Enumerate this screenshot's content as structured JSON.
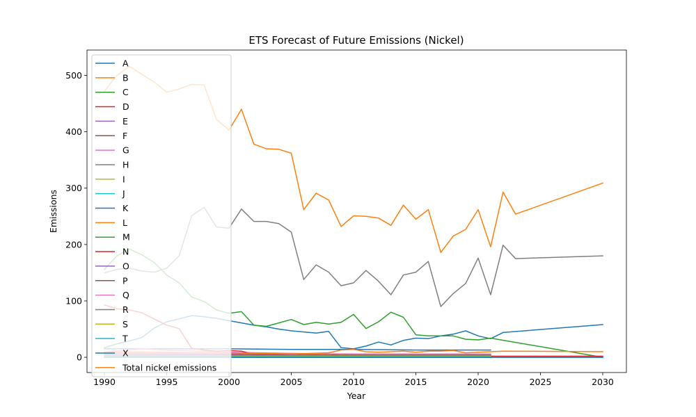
{
  "chart_data": {
    "type": "line",
    "title": "ETS Forecast of Future Emissions (Nickel)",
    "xlabel": "Year",
    "ylabel": "Emissions",
    "xlim": [
      1988.6,
      2031.9
    ],
    "ylim": [
      -27,
      545
    ],
    "xticks": [
      1990,
      1995,
      2000,
      2005,
      2010,
      2015,
      2020,
      2025,
      2030
    ],
    "yticks": [
      0,
      100,
      200,
      300,
      400,
      500
    ],
    "grid": false,
    "legend_position": "upper-left",
    "series": [
      {
        "name": "A",
        "color": "#1f77b4",
        "points": [
          [
            1990,
            15
          ],
          [
            1992,
            15
          ],
          [
            1995,
            15
          ],
          [
            2000,
            15
          ],
          [
            2005,
            14
          ],
          [
            2010,
            14
          ],
          [
            2015,
            13
          ],
          [
            2020,
            13
          ],
          [
            2021,
            13
          ]
        ]
      },
      {
        "name": "B",
        "color": "#ff7f0e",
        "points": [
          [
            1990,
            5
          ],
          [
            2000,
            5
          ],
          [
            2010,
            4
          ],
          [
            2020,
            4
          ],
          [
            2021,
            4
          ]
        ]
      },
      {
        "name": "C",
        "color": "#2ca02c",
        "points": [
          [
            1990,
            3
          ],
          [
            2000,
            3
          ],
          [
            2010,
            3
          ],
          [
            2020,
            3
          ],
          [
            2021,
            3
          ]
        ]
      },
      {
        "name": "D",
        "color": "#d62728",
        "points": [
          [
            1990,
            2
          ],
          [
            2000,
            2
          ],
          [
            2010,
            2
          ],
          [
            2020,
            2
          ],
          [
            2021,
            2
          ]
        ]
      },
      {
        "name": "E",
        "color": "#9467bd",
        "points": [
          [
            1990,
            1
          ],
          [
            2000,
            1
          ],
          [
            2010,
            1
          ],
          [
            2020,
            1
          ],
          [
            2021,
            1
          ]
        ]
      },
      {
        "name": "F",
        "color": "#8c564b",
        "points": [
          [
            1990,
            3
          ],
          [
            2000,
            3
          ],
          [
            2010,
            3
          ],
          [
            2021,
            3
          ]
        ]
      },
      {
        "name": "G",
        "color": "#e377c2",
        "points": [
          [
            1990,
            10
          ],
          [
            1992,
            13
          ],
          [
            1993,
            15
          ],
          [
            1995,
            13
          ],
          [
            2000,
            9
          ],
          [
            2005,
            7
          ],
          [
            2010,
            5
          ],
          [
            2015,
            4
          ],
          [
            2021,
            4
          ]
        ]
      },
      {
        "name": "H",
        "color": "#7f7f7f",
        "points": [
          [
            1990,
            2
          ],
          [
            2000,
            2
          ],
          [
            2010,
            2
          ],
          [
            2021,
            2
          ]
        ]
      },
      {
        "name": "I",
        "color": "#bcbd22",
        "points": [
          [
            1990,
            1
          ],
          [
            2000,
            1
          ],
          [
            2010,
            1
          ],
          [
            2021,
            1
          ]
        ]
      },
      {
        "name": "J",
        "color": "#17becf",
        "points": [
          [
            1990,
            0
          ],
          [
            2000,
            0
          ],
          [
            2010,
            0
          ],
          [
            2021,
            0
          ],
          [
            2022,
            0
          ],
          [
            2030,
            0
          ]
        ]
      },
      {
        "name": "K",
        "color": "#1f77b4",
        "points": [
          [
            1990,
            17
          ],
          [
            1991,
            24
          ],
          [
            1992,
            29
          ],
          [
            1993,
            35
          ],
          [
            1994,
            52
          ],
          [
            1995,
            63
          ],
          [
            1996,
            68
          ],
          [
            1997,
            74
          ],
          [
            1998,
            72
          ],
          [
            1999,
            69
          ],
          [
            2000,
            65
          ],
          [
            2001,
            61
          ],
          [
            2002,
            57
          ],
          [
            2003,
            54
          ],
          [
            2004,
            50
          ],
          [
            2005,
            47
          ],
          [
            2006,
            45
          ],
          [
            2007,
            43
          ],
          [
            2008,
            46
          ],
          [
            2009,
            17
          ],
          [
            2010,
            15
          ],
          [
            2011,
            20
          ],
          [
            2012,
            27
          ],
          [
            2013,
            22
          ],
          [
            2014,
            30
          ],
          [
            2015,
            34
          ],
          [
            2016,
            33
          ],
          [
            2017,
            38
          ],
          [
            2018,
            41
          ],
          [
            2019,
            47
          ],
          [
            2020,
            38
          ],
          [
            2021,
            33
          ],
          [
            2022,
            44
          ],
          [
            2030,
            58
          ]
        ]
      },
      {
        "name": "L",
        "color": "#ff7f0e",
        "points": [
          [
            1990,
            472
          ],
          [
            1991,
            500
          ],
          [
            1992,
            516
          ],
          [
            1993,
            502
          ],
          [
            1994,
            488
          ],
          [
            1995,
            470
          ],
          [
            1996,
            476
          ],
          [
            1997,
            484
          ],
          [
            1998,
            483
          ],
          [
            1999,
            422
          ],
          [
            2000,
            403
          ],
          [
            2001,
            440
          ],
          [
            2002,
            378
          ],
          [
            2003,
            370
          ],
          [
            2004,
            369
          ],
          [
            2005,
            362
          ],
          [
            2006,
            262
          ],
          [
            2007,
            291
          ],
          [
            2008,
            279
          ],
          [
            2009,
            232
          ],
          [
            2010,
            251
          ],
          [
            2011,
            250
          ],
          [
            2012,
            247
          ],
          [
            2013,
            234
          ],
          [
            2014,
            270
          ],
          [
            2015,
            245
          ],
          [
            2016,
            262
          ],
          [
            2017,
            186
          ],
          [
            2018,
            215
          ],
          [
            2019,
            227
          ],
          [
            2020,
            262
          ],
          [
            2021,
            196
          ],
          [
            2022,
            293
          ],
          [
            2023,
            254
          ],
          [
            2030,
            309
          ]
        ]
      },
      {
        "name": "M",
        "color": "#2ca02c",
        "points": [
          [
            1990,
            156
          ],
          [
            1991,
            180
          ],
          [
            1992,
            192
          ],
          [
            1993,
            182
          ],
          [
            1994,
            168
          ],
          [
            1995,
            146
          ],
          [
            1996,
            132
          ],
          [
            1997,
            107
          ],
          [
            1998,
            99
          ],
          [
            1999,
            84
          ],
          [
            2000,
            78
          ],
          [
            2001,
            81
          ],
          [
            2002,
            57
          ],
          [
            2003,
            55
          ],
          [
            2004,
            61
          ],
          [
            2005,
            67
          ],
          [
            2006,
            58
          ],
          [
            2007,
            62
          ],
          [
            2008,
            59
          ],
          [
            2009,
            62
          ],
          [
            2010,
            76
          ],
          [
            2011,
            51
          ],
          [
            2012,
            63
          ],
          [
            2013,
            80
          ],
          [
            2014,
            71
          ],
          [
            2015,
            40
          ],
          [
            2016,
            38
          ],
          [
            2017,
            38
          ],
          [
            2018,
            38
          ],
          [
            2019,
            32
          ],
          [
            2020,
            31
          ],
          [
            2021,
            34
          ],
          [
            2030,
            0
          ]
        ]
      },
      {
        "name": "N",
        "color": "#d62728",
        "points": [
          [
            1990,
            93
          ],
          [
            1991,
            86
          ],
          [
            1992,
            84
          ],
          [
            1993,
            79
          ],
          [
            1994,
            68
          ],
          [
            1995,
            57
          ],
          [
            1996,
            51
          ],
          [
            1997,
            16
          ],
          [
            1998,
            13
          ],
          [
            1999,
            11
          ],
          [
            2000,
            12
          ],
          [
            2001,
            11
          ],
          [
            2002,
            5
          ],
          [
            2003,
            4
          ],
          [
            2004,
            5
          ],
          [
            2005,
            6
          ],
          [
            2006,
            6
          ],
          [
            2007,
            5
          ],
          [
            2008,
            6
          ],
          [
            2009,
            2
          ],
          [
            2010,
            2
          ],
          [
            2015,
            2
          ],
          [
            2021,
            2
          ],
          [
            2030,
            2
          ]
        ]
      },
      {
        "name": "O",
        "color": "#9467bd",
        "points": [
          [
            1990,
            4
          ],
          [
            2000,
            4
          ],
          [
            2010,
            3
          ],
          [
            2021,
            3
          ]
        ]
      },
      {
        "name": "P",
        "color": "#8c564b",
        "points": [
          [
            1990,
            7
          ],
          [
            2000,
            6
          ],
          [
            2010,
            5
          ],
          [
            2021,
            5
          ]
        ]
      },
      {
        "name": "Q",
        "color": "#e377c2",
        "points": [
          [
            1990,
            8
          ],
          [
            2000,
            7
          ],
          [
            2010,
            6
          ],
          [
            2021,
            6
          ]
        ]
      },
      {
        "name": "R",
        "color": "#7f7f7f",
        "points": [
          [
            1990,
            150
          ],
          [
            1991,
            156
          ],
          [
            1992,
            158
          ],
          [
            1993,
            153
          ],
          [
            1994,
            151
          ],
          [
            1995,
            158
          ],
          [
            1996,
            180
          ],
          [
            1997,
            251
          ],
          [
            1998,
            266
          ],
          [
            1999,
            231
          ],
          [
            2000,
            229
          ],
          [
            2001,
            263
          ],
          [
            2002,
            241
          ],
          [
            2003,
            241
          ],
          [
            2004,
            237
          ],
          [
            2005,
            222
          ],
          [
            2006,
            138
          ],
          [
            2007,
            164
          ],
          [
            2008,
            151
          ],
          [
            2009,
            127
          ],
          [
            2010,
            132
          ],
          [
            2011,
            154
          ],
          [
            2012,
            135
          ],
          [
            2013,
            111
          ],
          [
            2014,
            146
          ],
          [
            2015,
            151
          ],
          [
            2016,
            170
          ],
          [
            2017,
            90
          ],
          [
            2018,
            113
          ],
          [
            2019,
            131
          ],
          [
            2020,
            176
          ],
          [
            2021,
            111
          ],
          [
            2022,
            199
          ],
          [
            2023,
            175
          ],
          [
            2030,
            180
          ]
        ]
      },
      {
        "name": "S",
        "color": "#bcbd22",
        "points": [
          [
            1990,
            2
          ],
          [
            2000,
            2
          ],
          [
            2010,
            2
          ],
          [
            2021,
            2
          ]
        ]
      },
      {
        "name": "T",
        "color": "#17becf",
        "points": [
          [
            1990,
            1
          ],
          [
            2000,
            1
          ],
          [
            2010,
            1
          ],
          [
            2021,
            1
          ]
        ]
      },
      {
        "name": "X",
        "color": "#1f77b4",
        "points": [
          [
            1990,
            0
          ],
          [
            2000,
            0
          ],
          [
            2010,
            0
          ],
          [
            2021,
            0
          ],
          [
            2030,
            0
          ]
        ]
      },
      {
        "name": "Total nickel emissions",
        "color": "#ff7f0e",
        "points": [
          [
            1990,
            10
          ],
          [
            1995,
            9
          ],
          [
            2000,
            8
          ],
          [
            2005,
            6
          ],
          [
            2008,
            8
          ],
          [
            2009,
            13
          ],
          [
            2010,
            14
          ],
          [
            2011,
            10
          ],
          [
            2012,
            9
          ],
          [
            2013,
            10
          ],
          [
            2014,
            11
          ],
          [
            2015,
            9
          ],
          [
            2016,
            11
          ],
          [
            2017,
            11
          ],
          [
            2018,
            12
          ],
          [
            2019,
            8
          ],
          [
            2020,
            9
          ],
          [
            2021,
            10
          ],
          [
            2022,
            11
          ],
          [
            2030,
            10
          ]
        ]
      }
    ]
  }
}
